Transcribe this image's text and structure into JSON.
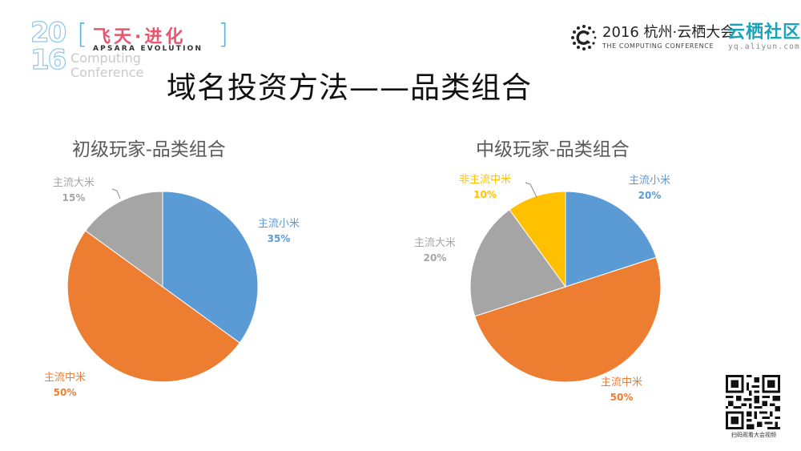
{
  "header": {
    "event_logo": {
      "year_top": "20",
      "year_bottom": "16",
      "cn_name": "飞天·进化",
      "en_name": "APSARA EVOLUTION",
      "sub_line1": "Computing",
      "sub_line2": "Conference"
    },
    "conference_logo": {
      "title": "2016 杭州·云栖大会",
      "subtitle": "THE COMPUTING CONFERENCE"
    },
    "community_logo": {
      "title": "云栖社区",
      "url_text": "yq.aliyun.com"
    }
  },
  "slide": {
    "title": "域名投资方法——品类组合"
  },
  "qr": {
    "caption": "扫码观看大会视频"
  },
  "colors": {
    "blue": "#5b9bd5",
    "orange": "#ed7d31",
    "gray": "#a5a5a5",
    "yellow": "#ffc000"
  },
  "chart_data": [
    {
      "type": "pie",
      "title": "初级玩家-品类组合",
      "categories": [
        "主流小米",
        "主流中米",
        "主流大米"
      ],
      "values": [
        35,
        50,
        15
      ],
      "labels": [
        "35%",
        "50%",
        "15%"
      ],
      "colors": [
        "#5b9bd5",
        "#ed7d31",
        "#a5a5a5"
      ],
      "start_angle": 0,
      "direction": "clockwise",
      "legend": "none (data labels)"
    },
    {
      "type": "pie",
      "title": "中级玩家-品类组合",
      "categories": [
        "主流小米",
        "主流中米",
        "主流大米",
        "非主流中米"
      ],
      "values": [
        20,
        50,
        20,
        10
      ],
      "labels": [
        "20%",
        "50%",
        "20%",
        "10%"
      ],
      "colors": [
        "#5b9bd5",
        "#ed7d31",
        "#a5a5a5",
        "#ffc000"
      ],
      "start_angle": 0,
      "direction": "clockwise",
      "legend": "none (data labels)"
    }
  ]
}
